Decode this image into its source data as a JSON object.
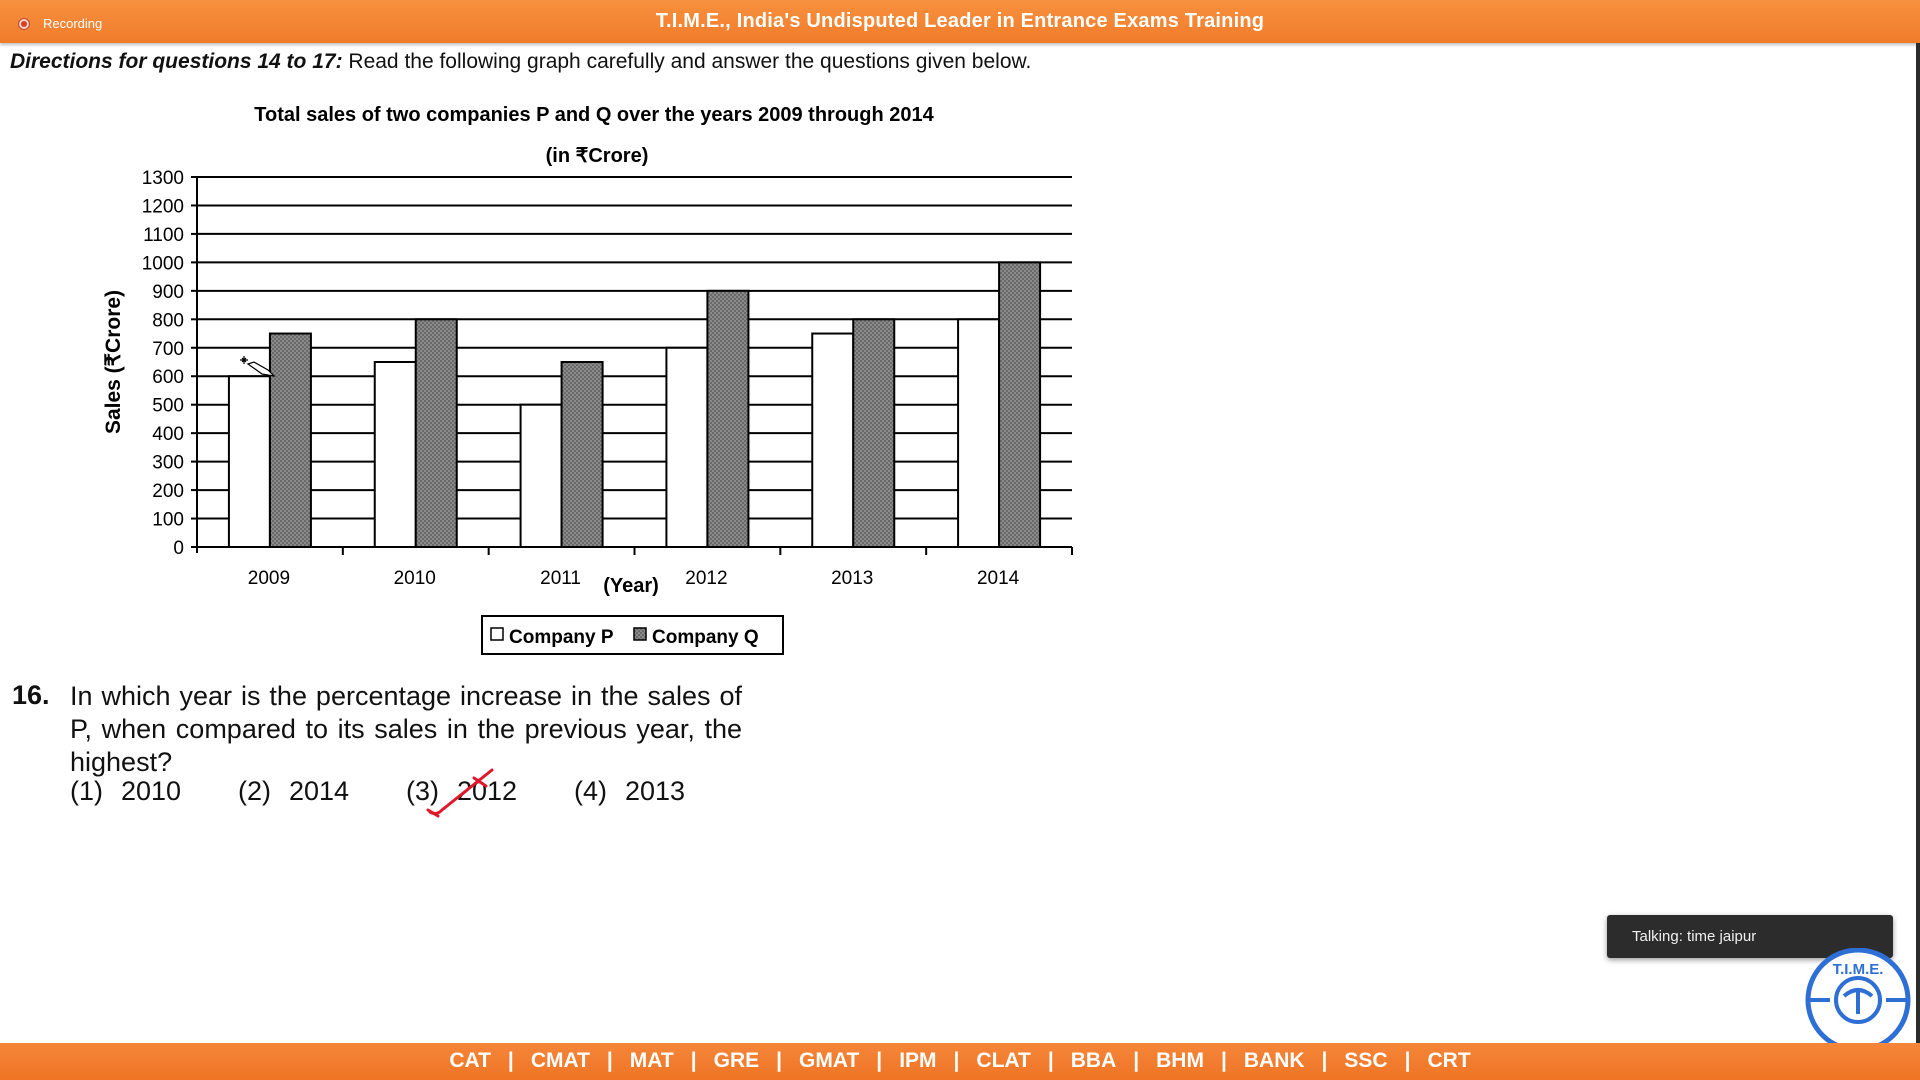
{
  "window": {
    "recording_label": "Recording",
    "title": "T.I.M.E., India's Undisputed Leader in Entrance Exams Training"
  },
  "directions": {
    "lead": "Directions for questions 14 to 17:",
    "text": " Read the following graph carefully and answer the questions given below."
  },
  "chart_data": {
    "type": "bar",
    "title": "Total sales of two companies P and Q over the years 2009 through 2014",
    "subtitle": "(in ₹Crore)",
    "xlabel": "(Year)",
    "ylabel": "Sales (₹Crore)",
    "categories": [
      "2009",
      "2010",
      "2011",
      "2012",
      "2013",
      "2014"
    ],
    "series": [
      {
        "name": "Company P",
        "values": [
          600,
          650,
          500,
          700,
          750,
          800
        ],
        "color": "#ffffff"
      },
      {
        "name": "Company Q",
        "values": [
          750,
          800,
          650,
          900,
          800,
          1000
        ],
        "color": "#808080"
      }
    ],
    "ylim": [
      0,
      1300
    ],
    "yticks": [
      0,
      100,
      200,
      300,
      400,
      500,
      600,
      700,
      800,
      900,
      1000,
      1100,
      1200,
      1300
    ],
    "grid": true,
    "legend_position": "bottom-center"
  },
  "question": {
    "number": "16.",
    "text": "In which year is the percentage increase in the sales of P, when compared to its sales in the previous year, the highest?",
    "options": [
      {
        "num": "(1)",
        "text": "2010"
      },
      {
        "num": "(2)",
        "text": "2014"
      },
      {
        "num": "(3)",
        "text": "2012"
      },
      {
        "num": "(4)",
        "text": "2013"
      }
    ]
  },
  "toast": {
    "text": "Talking: time jaipur"
  },
  "logo": {
    "text": "T.I.M.E."
  },
  "footer": {
    "exams": [
      "CAT",
      "CMAT",
      "MAT",
      "GRE",
      "GMAT",
      "IPM",
      "CLAT",
      "BBA",
      "BHM",
      "BANK",
      "SSC",
      "CRT"
    ],
    "separator": "|"
  }
}
